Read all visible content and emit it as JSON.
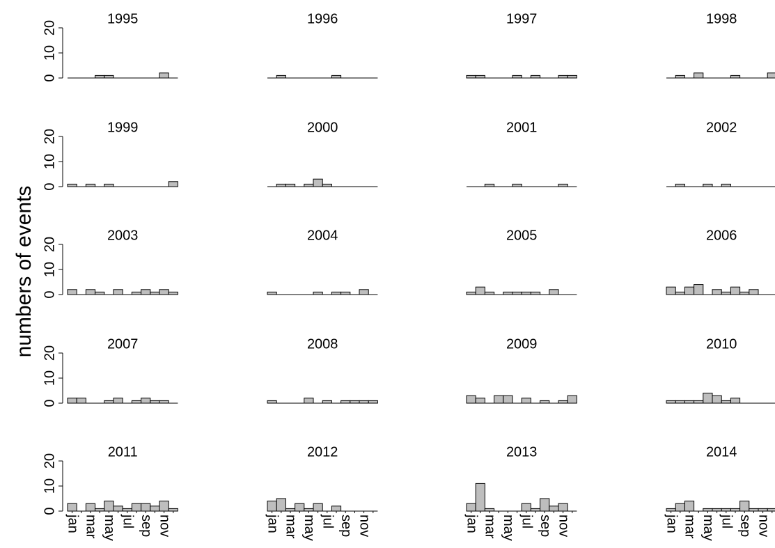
{
  "chart_data": {
    "type": "bar",
    "ylabel": "numbers of events",
    "categories": [
      "jan",
      null,
      "mar",
      null,
      "may",
      null,
      "jul",
      null,
      "sep",
      null,
      "nov",
      null
    ],
    "ylim": [
      0,
      20
    ],
    "yticks": [
      0,
      10,
      20
    ],
    "color": "#bebebe",
    "panels": [
      {
        "title": "1995",
        "values": [
          0,
          0,
          0,
          1,
          1,
          0,
          0,
          0,
          0,
          0,
          2,
          0
        ]
      },
      {
        "title": "1996",
        "values": [
          0,
          1,
          0,
          0,
          0,
          0,
          0,
          1,
          0,
          0,
          0,
          0
        ]
      },
      {
        "title": "1997",
        "values": [
          1,
          1,
          0,
          0,
          0,
          1,
          0,
          1,
          0,
          0,
          1,
          1
        ]
      },
      {
        "title": "1998",
        "values": [
          0,
          1,
          0,
          2,
          0,
          0,
          0,
          1,
          0,
          0,
          0,
          2
        ]
      },
      {
        "title": "1999",
        "values": [
          1,
          0,
          1,
          0,
          1,
          0,
          0,
          0,
          0,
          0,
          0,
          2
        ]
      },
      {
        "title": "2000",
        "values": [
          0,
          1,
          1,
          0,
          1,
          3,
          1,
          0,
          0,
          0,
          0,
          0
        ]
      },
      {
        "title": "2001",
        "values": [
          0,
          0,
          1,
          0,
          0,
          1,
          0,
          0,
          0,
          0,
          1,
          0
        ]
      },
      {
        "title": "2002",
        "values": [
          0,
          1,
          0,
          0,
          1,
          0,
          1,
          0,
          0,
          0,
          0,
          0
        ]
      },
      {
        "title": "2003",
        "values": [
          2,
          0,
          2,
          1,
          0,
          2,
          0,
          1,
          2,
          1,
          2,
          1
        ]
      },
      {
        "title": "2004",
        "values": [
          1,
          0,
          0,
          0,
          0,
          1,
          0,
          1,
          1,
          0,
          2,
          0
        ]
      },
      {
        "title": "2005",
        "values": [
          1,
          3,
          1,
          0,
          1,
          1,
          1,
          1,
          0,
          2,
          0,
          0
        ]
      },
      {
        "title": "2006",
        "values": [
          3,
          1,
          3,
          4,
          0,
          2,
          1,
          3,
          1,
          2,
          0,
          0
        ]
      },
      {
        "title": "2007",
        "values": [
          2,
          2,
          0,
          0,
          1,
          2,
          0,
          1,
          2,
          1,
          1,
          0
        ]
      },
      {
        "title": "2008",
        "values": [
          1,
          0,
          0,
          0,
          2,
          0,
          1,
          0,
          1,
          1,
          1,
          1
        ]
      },
      {
        "title": "2009",
        "values": [
          3,
          2,
          0,
          3,
          3,
          0,
          2,
          0,
          1,
          0,
          1,
          3
        ]
      },
      {
        "title": "2010",
        "values": [
          1,
          1,
          1,
          1,
          4,
          3,
          1,
          2,
          0,
          0,
          0,
          0
        ]
      },
      {
        "title": "2011",
        "values": [
          3,
          0,
          3,
          1,
          4,
          2,
          1,
          3,
          3,
          2,
          4,
          1
        ]
      },
      {
        "title": "2012",
        "values": [
          4,
          5,
          1,
          3,
          1,
          3,
          0,
          2,
          0,
          0,
          0,
          0
        ]
      },
      {
        "title": "2013",
        "values": [
          3,
          11,
          1,
          0,
          0,
          0,
          3,
          1,
          5,
          2,
          3,
          0
        ]
      },
      {
        "title": "2014",
        "values": [
          1,
          3,
          4,
          0,
          1,
          1,
          1,
          1,
          4,
          1,
          1,
          1
        ]
      }
    ]
  }
}
